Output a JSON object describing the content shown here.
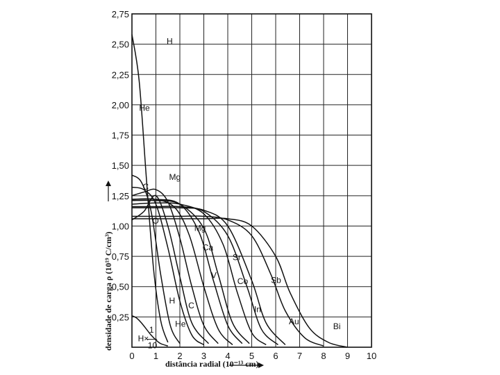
{
  "chart_data": {
    "type": "line",
    "xlabel": "distância radial (10⁻¹³ cm)",
    "ylabel": "densidade de carga ρ (10¹⁹ C/cm³)",
    "xlim": [
      0,
      10
    ],
    "ylim": [
      0,
      2.75
    ],
    "grid": true,
    "x_ticks": [
      "0",
      "1",
      "2",
      "3",
      "4",
      "5",
      "6",
      "7",
      "8",
      "9",
      "10"
    ],
    "y_ticks": [
      "0,25",
      "0,50",
      "0,75",
      "1,00",
      "1,25",
      "1,50",
      "1,75",
      "2,00",
      "2,25",
      "2,50",
      "2,75"
    ],
    "series": [
      {
        "name": "H",
        "x": [
          0,
          0.3,
          0.6,
          0.9,
          1.2,
          1.5
        ],
        "y": [
          2.58,
          2.2,
          1.4,
          0.65,
          0.22,
          0.04
        ]
      },
      {
        "name": "He",
        "x": [
          0,
          0.4,
          0.8,
          1.2,
          1.6,
          2.0
        ],
        "y": [
          1.42,
          1.36,
          1.12,
          0.6,
          0.18,
          0.03
        ]
      },
      {
        "name": "C",
        "x": [
          0,
          0.5,
          1.0,
          1.5,
          2.0,
          2.5,
          3.0
        ],
        "y": [
          1.32,
          1.3,
          1.18,
          0.82,
          0.38,
          0.1,
          0.02
        ]
      },
      {
        "name": "O",
        "x": [
          0,
          0.5,
          1.0,
          1.5,
          2.0,
          2.5,
          3.2
        ],
        "y": [
          1.05,
          1.12,
          1.25,
          1.0,
          0.58,
          0.2,
          0.03
        ]
      },
      {
        "name": "Mg",
        "x": [
          0,
          0.5,
          1.0,
          1.5,
          2.0,
          2.5,
          3.0,
          3.6
        ],
        "y": [
          1.25,
          1.28,
          1.3,
          1.2,
          0.9,
          0.5,
          0.18,
          0.03
        ]
      },
      {
        "name": "Ca",
        "x": [
          0,
          1.0,
          1.8,
          2.4,
          3.0,
          3.6,
          4.2
        ],
        "y": [
          1.22,
          1.22,
          1.15,
          0.92,
          0.5,
          0.15,
          0.02
        ]
      },
      {
        "name": "V",
        "x": [
          0,
          1.0,
          2.0,
          2.8,
          3.4,
          4.0,
          4.6
        ],
        "y": [
          1.22,
          1.22,
          1.18,
          0.95,
          0.55,
          0.18,
          0.03
        ]
      },
      {
        "name": "Co",
        "x": [
          0,
          1.0,
          2.0,
          3.0,
          3.6,
          4.2,
          4.9
        ],
        "y": [
          1.21,
          1.21,
          1.18,
          0.98,
          0.6,
          0.2,
          0.03
        ]
      },
      {
        "name": "Sr",
        "x": [
          0,
          1.0,
          2.0,
          3.0,
          3.8,
          4.4,
          5.0,
          5.6
        ],
        "y": [
          1.18,
          1.19,
          1.18,
          1.1,
          0.85,
          0.45,
          0.12,
          0.02
        ]
      },
      {
        "name": "In",
        "x": [
          0,
          1.0,
          2.0,
          3.0,
          4.0,
          4.8,
          5.4,
          6.1
        ],
        "y": [
          1.16,
          1.16,
          1.16,
          1.12,
          0.92,
          0.5,
          0.15,
          0.02
        ]
      },
      {
        "name": "Sb",
        "x": [
          0,
          1.0,
          2.0,
          3.0,
          4.0,
          5.0,
          5.6,
          6.4
        ],
        "y": [
          1.15,
          1.15,
          1.15,
          1.13,
          1.0,
          0.55,
          0.2,
          0.02
        ]
      },
      {
        "name": "Au",
        "x": [
          0,
          1.0,
          2.0,
          3.0,
          4.0,
          5.0,
          5.8,
          6.4,
          7.2,
          8.0
        ],
        "y": [
          1.08,
          1.08,
          1.08,
          1.08,
          1.05,
          0.92,
          0.6,
          0.3,
          0.08,
          0.01
        ]
      },
      {
        "name": "Bi",
        "x": [
          0,
          1.0,
          2.0,
          3.0,
          4.0,
          5.0,
          6.0,
          6.6,
          7.4,
          8.2,
          9.0
        ],
        "y": [
          1.06,
          1.06,
          1.06,
          1.06,
          1.06,
          1.0,
          0.75,
          0.45,
          0.16,
          0.04,
          0.0
        ]
      },
      {
        "name": "H×1/10",
        "x": [
          0,
          0.2,
          0.4,
          0.6,
          0.8,
          1.0,
          1.2,
          1.5
        ],
        "y": [
          0.26,
          0.24,
          0.2,
          0.15,
          0.1,
          0.06,
          0.03,
          0.01
        ]
      }
    ],
    "labels": [
      {
        "text": "H",
        "x": 1.45,
        "y": 2.5
      },
      {
        "text": "He",
        "x": 0.3,
        "y": 1.95
      },
      {
        "text": "Mg",
        "x": 1.55,
        "y": 1.38
      },
      {
        "text": "C",
        "x": 0.45,
        "y": 1.3
      },
      {
        "text": "O",
        "x": 0.85,
        "y": 1.02
      },
      {
        "text": "Mg",
        "x": 2.6,
        "y": 0.96
      },
      {
        "text": "Ca",
        "x": 2.95,
        "y": 0.8
      },
      {
        "text": "Sr",
        "x": 4.2,
        "y": 0.72
      },
      {
        "text": "V",
        "x": 3.3,
        "y": 0.57
      },
      {
        "text": "Co",
        "x": 4.4,
        "y": 0.52
      },
      {
        "text": "Sb",
        "x": 5.8,
        "y": 0.53
      },
      {
        "text": "In",
        "x": 5.1,
        "y": 0.29
      },
      {
        "text": "H",
        "x": 1.55,
        "y": 0.36
      },
      {
        "text": "C",
        "x": 2.35,
        "y": 0.32
      },
      {
        "text": "He",
        "x": 1.8,
        "y": 0.17
      },
      {
        "text": "Au",
        "x": 6.55,
        "y": 0.19
      },
      {
        "text": "Bi",
        "x": 8.4,
        "y": 0.15
      },
      {
        "text": "H×",
        "x": 0.25,
        "y": 0.05
      }
    ],
    "h_fraction": {
      "numerator": "1",
      "denominator": "10"
    }
  }
}
